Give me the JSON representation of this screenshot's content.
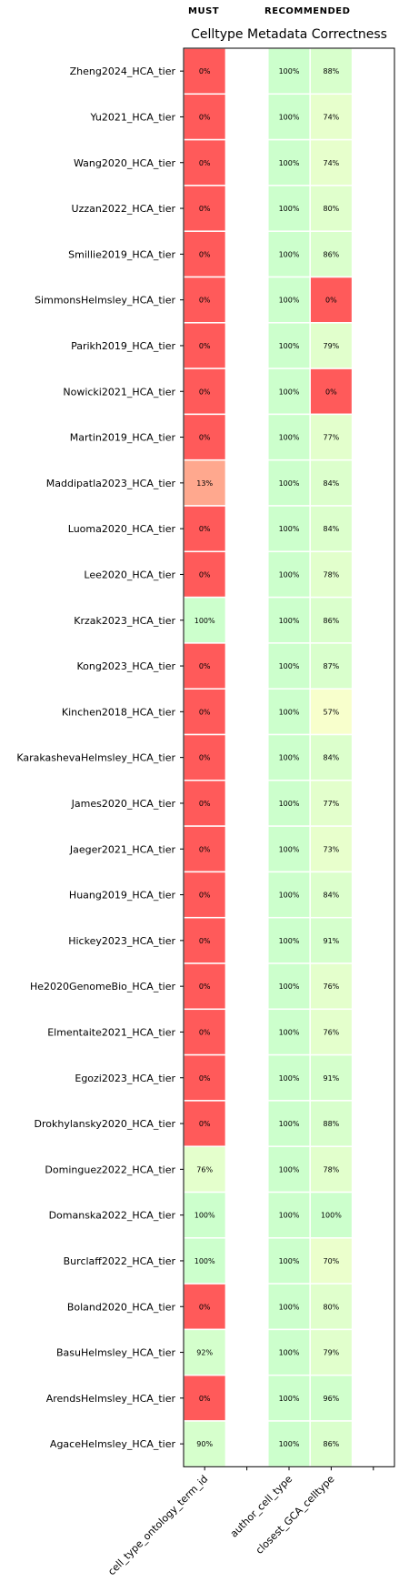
{
  "headers": {
    "must": "MUST",
    "recommended": "RECOMMENDED"
  },
  "chart_data": {
    "type": "heatmap",
    "title": "Celltype Metadata Correctness",
    "columns": [
      "cell_type_ontology_term_id",
      "",
      "author_cell_type",
      "closest_GCA_celltype",
      ""
    ],
    "column_groups": [
      {
        "label": "MUST",
        "columns": [
          "cell_type_ontology_term_id"
        ]
      },
      {
        "label": "RECOMMENDED",
        "columns": [
          "author_cell_type",
          "closest_GCA_celltype"
        ]
      }
    ],
    "rows": [
      "Zheng2024_HCA_tier",
      "Yu2021_HCA_tier",
      "Wang2020_HCA_tier",
      "Uzzan2022_HCA_tier",
      "Smillie2019_HCA_tier",
      "SimmonsHelmsley_HCA_tier",
      "Parikh2019_HCA_tier",
      "Nowicki2021_HCA_tier",
      "Martin2019_HCA_tier",
      "Maddipatla2023_HCA_tier",
      "Luoma2020_HCA_tier",
      "Lee2020_HCA_tier",
      "Krzak2023_HCA_tier",
      "Kong2023_HCA_tier",
      "Kinchen2018_HCA_tier",
      "KarakashevaHelmsley_HCA_tier",
      "James2020_HCA_tier",
      "Jaeger2021_HCA_tier",
      "Huang2019_HCA_tier",
      "Hickey2023_HCA_tier",
      "He2020GenomeBio_HCA_tier",
      "Elmentaite2021_HCA_tier",
      "Egozi2023_HCA_tier",
      "Drokhylansky2020_HCA_tier",
      "Dominguez2022_HCA_tier",
      "Domanska2022_HCA_tier",
      "Burclaff2022_HCA_tier",
      "Boland2020_HCA_tier",
      "BasuHelmsley_HCA_tier",
      "ArendsHelmsley_HCA_tier",
      "AgaceHelmsley_HCA_tier"
    ],
    "values": [
      [
        0,
        null,
        100,
        88
      ],
      [
        0,
        null,
        100,
        74
      ],
      [
        0,
        null,
        100,
        74
      ],
      [
        0,
        null,
        100,
        80
      ],
      [
        0,
        null,
        100,
        86
      ],
      [
        0,
        null,
        100,
        0
      ],
      [
        0,
        null,
        100,
        79
      ],
      [
        0,
        null,
        100,
        0
      ],
      [
        0,
        null,
        100,
        77
      ],
      [
        13,
        null,
        100,
        84
      ],
      [
        0,
        null,
        100,
        84
      ],
      [
        0,
        null,
        100,
        78
      ],
      [
        100,
        null,
        100,
        86
      ],
      [
        0,
        null,
        100,
        87
      ],
      [
        0,
        null,
        100,
        57
      ],
      [
        0,
        null,
        100,
        84
      ],
      [
        0,
        null,
        100,
        77
      ],
      [
        0,
        null,
        100,
        73
      ],
      [
        0,
        null,
        100,
        84
      ],
      [
        0,
        null,
        100,
        91
      ],
      [
        0,
        null,
        100,
        76
      ],
      [
        0,
        null,
        100,
        76
      ],
      [
        0,
        null,
        100,
        91
      ],
      [
        0,
        null,
        100,
        88
      ],
      [
        76,
        null,
        100,
        78
      ],
      [
        100,
        null,
        100,
        100
      ],
      [
        100,
        null,
        100,
        70
      ],
      [
        0,
        null,
        100,
        80
      ],
      [
        92,
        null,
        100,
        79
      ],
      [
        0,
        null,
        100,
        96
      ],
      [
        90,
        null,
        100,
        86
      ]
    ],
    "value_suffix": "%",
    "colors": {
      "zero": "#ff5a5a",
      "low": "#ff8a78",
      "mid": "#ffffcc",
      "high": "#ccffcc",
      "grid_line": "#ffffff",
      "frame": "#000000"
    }
  }
}
